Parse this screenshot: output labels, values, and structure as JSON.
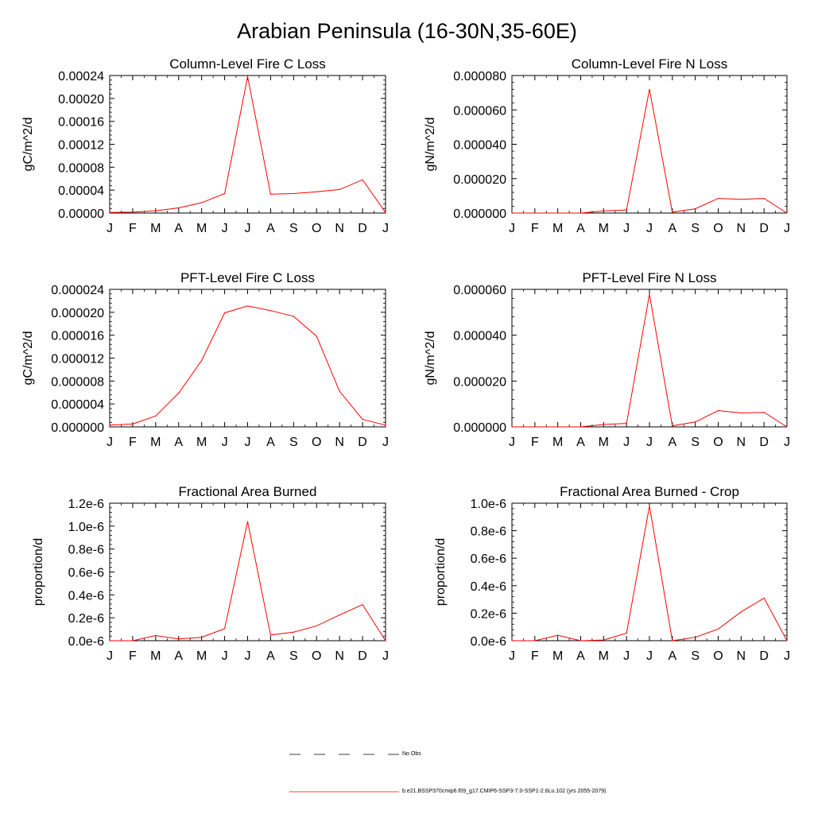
{
  "page_title": "Arabian Peninsula (16-30N,35-60E)",
  "line_color": "#ff0000",
  "legend": {
    "items": [
      {
        "label": "No Obs",
        "style": "dashed",
        "color": "#000000"
      },
      {
        "label": "b.e21.BSSP370cmip6.f09_g17.CMIP6-SSP3-7.0-SSP1-2.6Lu.102 (yrs 2055-2079)",
        "style": "solid",
        "color": "#ff0000"
      }
    ]
  },
  "chart_data": [
    {
      "type": "line",
      "title": "Column-Level Fire C Loss",
      "ylabel": "gC/m^2/d",
      "xlabel": "",
      "categories": [
        "J",
        "F",
        "M",
        "A",
        "M",
        "J",
        "J",
        "A",
        "S",
        "O",
        "N",
        "D",
        "J"
      ],
      "ylim": [
        0,
        0.00024
      ],
      "yticks": [
        "0.00000",
        "0.00004",
        "0.00008",
        "0.00012",
        "0.00016",
        "0.00020",
        "0.00024"
      ],
      "series": [
        {
          "values": [
            1e-06,
            1.5e-06,
            4e-06,
            9e-06,
            1.8e-05,
            3.4e-05,
            0.000238,
            3.3e-05,
            3.4e-05,
            3.7e-05,
            4.1e-05,
            5.8e-05,
            1e-06
          ]
        }
      ]
    },
    {
      "type": "line",
      "title": "Column-Level Fire N Loss",
      "ylabel": "gN/m^2/d",
      "xlabel": "",
      "categories": [
        "J",
        "F",
        "M",
        "A",
        "M",
        "J",
        "J",
        "A",
        "S",
        "O",
        "N",
        "D",
        "J"
      ],
      "ylim": [
        0,
        8e-05
      ],
      "yticks": [
        "0.000000",
        "0.000020",
        "0.000040",
        "0.000060",
        "0.000080"
      ],
      "series": [
        {
          "values": [
            0.0,
            0.0,
            0.0,
            0.0,
            1.2e-06,
            1.8e-06,
            7.2e-05,
            5e-07,
            2.5e-06,
            8.5e-06,
            8e-06,
            8.5e-06,
            0.0
          ]
        }
      ]
    },
    {
      "type": "line",
      "title": "PFT-Level Fire C Loss",
      "ylabel": "gC/m^2/d",
      "xlabel": "",
      "categories": [
        "J",
        "F",
        "M",
        "A",
        "M",
        "J",
        "J",
        "A",
        "S",
        "O",
        "N",
        "D",
        "J"
      ],
      "ylim": [
        0,
        2.4e-05
      ],
      "yticks": [
        "0.000000",
        "0.000004",
        "0.000008",
        "0.000012",
        "0.000016",
        "0.000020",
        "0.000024"
      ],
      "series": [
        {
          "values": [
            3e-07,
            5e-07,
            1.9e-06,
            5.9e-06,
            1.16e-05,
            1.99e-05,
            2.11e-05,
            2.03e-05,
            1.93e-05,
            1.58e-05,
            6.2e-06,
            1.3e-06,
            3e-07
          ]
        }
      ]
    },
    {
      "type": "line",
      "title": "PFT-Level Fire N Loss",
      "ylabel": "gN/m^2/d",
      "xlabel": "",
      "categories": [
        "J",
        "F",
        "M",
        "A",
        "M",
        "J",
        "J",
        "A",
        "S",
        "O",
        "N",
        "D",
        "J"
      ],
      "ylim": [
        0,
        7e-05
      ],
      "yticks": [
        "0.000000",
        "0.000020",
        "0.000040",
        "0.000060"
      ],
      "series": [
        {
          "values": [
            0.0,
            0.0,
            0.0,
            0.0,
            1.2e-06,
            1.8e-06,
            6.75e-05,
            5e-07,
            2.5e-06,
            8.3e-06,
            7.1e-06,
            7.4e-06,
            0.0
          ]
        }
      ]
    },
    {
      "type": "line",
      "title": "Fractional Area Burned",
      "ylabel": "proportion/d",
      "xlabel": "",
      "categories": [
        "J",
        "F",
        "M",
        "A",
        "M",
        "J",
        "J",
        "A",
        "S",
        "O",
        "N",
        "D",
        "J"
      ],
      "ylim": [
        0,
        1.2e-06
      ],
      "yticks": [
        "0.0e-6",
        "0.2e-6",
        "0.4e-6",
        "0.6e-6",
        "0.8e-6",
        "1.0e-6",
        "1.2e-6"
      ],
      "series": [
        {
          "values": [
            0.0,
            0.0,
            4.5e-08,
            1.5e-08,
            3e-08,
            1.05e-07,
            1.04e-06,
            5e-08,
            7.5e-08,
            1.3e-07,
            2.25e-07,
            3.15e-07,
            0.0
          ]
        }
      ]
    },
    {
      "type": "line",
      "title": "Fractional Area Burned - Crop",
      "ylabel": "proportion/d",
      "xlabel": "",
      "categories": [
        "J",
        "F",
        "M",
        "A",
        "M",
        "J",
        "J",
        "A",
        "S",
        "O",
        "N",
        "D",
        "J"
      ],
      "ylim": [
        0,
        1e-06
      ],
      "yticks": [
        "0.0e-6",
        "0.2e-6",
        "0.4e-6",
        "0.6e-6",
        "0.8e-6",
        "1.0e-6"
      ],
      "series": [
        {
          "values": [
            0.0,
            0.0,
            4e-08,
            0.0,
            5e-09,
            5.5e-08,
            9.8e-07,
            0.0,
            2.5e-08,
            8.5e-08,
            2.1e-07,
            3.1e-07,
            0.0
          ]
        }
      ]
    }
  ]
}
